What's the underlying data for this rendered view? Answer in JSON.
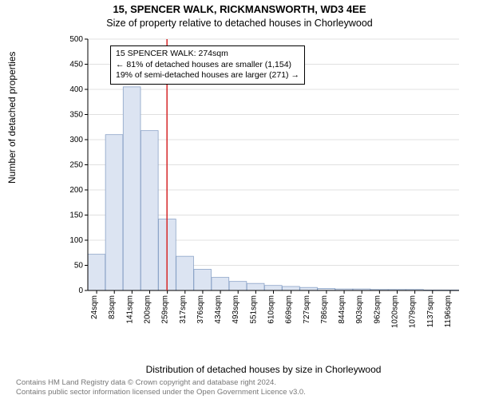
{
  "title_main": "15, SPENCER WALK, RICKMANSWORTH, WD3 4EE",
  "title_sub": "Size of property relative to detached houses in Chorleywood",
  "y_axis_label": "Number of detached properties",
  "x_axis_label": "Distribution of detached houses by size in Chorleywood",
  "footer_line1": "Contains HM Land Registry data © Crown copyright and database right 2024.",
  "footer_line2": "Contains public sector information licensed under the Open Government Licence v3.0.",
  "annotation": {
    "line1": "15 SPENCER WALK: 274sqm",
    "line2": "← 81% of detached houses are smaller (1,154)",
    "line3": "19% of semi-detached houses are larger (271) →"
  },
  "chart": {
    "type": "histogram",
    "background_color": "#ffffff",
    "bar_fill": "#dce4f2",
    "bar_stroke": "#8ba3c7",
    "grid_color": "#e0e0e0",
    "axis_color": "#000000",
    "marker_line_color": "#d62728",
    "ylim": [
      0,
      500
    ],
    "ytick_step": 50,
    "x_tick_labels": [
      "24sqm",
      "83sqm",
      "141sqm",
      "200sqm",
      "259sqm",
      "317sqm",
      "376sqm",
      "434sqm",
      "493sqm",
      "551sqm",
      "610sqm",
      "669sqm",
      "727sqm",
      "786sqm",
      "844sqm",
      "903sqm",
      "962sqm",
      "1020sqm",
      "1079sqm",
      "1137sqm",
      "1196sqm"
    ],
    "values": [
      72,
      310,
      405,
      318,
      142,
      68,
      42,
      26,
      18,
      14,
      10,
      8,
      6,
      4,
      3,
      3,
      2,
      2,
      2,
      1,
      1
    ],
    "marker_value_sqm": 274,
    "x_min_sqm": 24,
    "x_max_sqm": 1196,
    "tick_fontsize": 10,
    "axis_label_fontsize": 12
  }
}
